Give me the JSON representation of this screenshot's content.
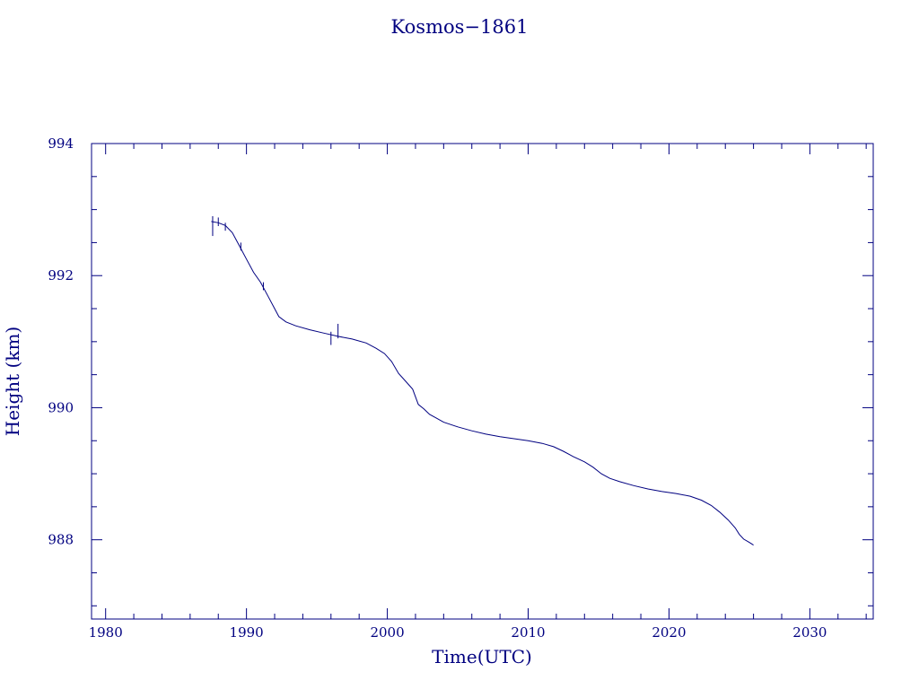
{
  "chart_data": {
    "type": "line",
    "title": "Kosmos−1861",
    "xlabel": "Time(UTC)",
    "ylabel": "Height (km)",
    "xlim": [
      1979,
      2034.5
    ],
    "ylim": [
      986.8,
      994
    ],
    "x_ticks": [
      1980,
      1990,
      2000,
      2010,
      2020,
      2030
    ],
    "y_ticks": [
      988,
      990,
      992,
      994
    ],
    "grid": false,
    "color": "#000080",
    "series": [
      {
        "x": [
          1987.5,
          1988.0,
          1988.5,
          1989.0,
          1989.5,
          1990.0,
          1990.5,
          1991.0,
          1991.5,
          1992.0,
          1992.3,
          1992.8,
          1993.5,
          1994.5,
          1995.5,
          1996.5,
          1997.5,
          1998.5,
          1999.2,
          1999.8,
          2000.3,
          2000.8,
          2001.3,
          2001.8,
          2002.2,
          2002.6,
          2003.0,
          2003.5,
          2004.0,
          2005.0,
          2006.0,
          2007.0,
          2008.0,
          2009.0,
          2010.0,
          2011.0,
          2011.8,
          2012.5,
          2013.2,
          2014.0,
          2014.6,
          2015.2,
          2015.8,
          2016.5,
          2017.5,
          2018.5,
          2019.5,
          2020.5,
          2021.5,
          2022.3,
          2023.0,
          2023.6,
          2024.2,
          2024.7,
          2025.0,
          2025.3,
          2025.7,
          2026.0
        ],
        "y": [
          992.82,
          992.8,
          992.76,
          992.65,
          992.45,
          992.25,
          992.05,
          991.9,
          991.7,
          991.5,
          991.38,
          991.3,
          991.24,
          991.18,
          991.13,
          991.08,
          991.04,
          990.98,
          990.9,
          990.82,
          990.7,
          990.52,
          990.4,
          990.28,
          990.05,
          989.98,
          989.9,
          989.84,
          989.78,
          989.71,
          989.65,
          989.6,
          989.56,
          989.53,
          989.5,
          989.46,
          989.41,
          989.34,
          989.26,
          989.18,
          989.1,
          989.0,
          988.93,
          988.88,
          988.82,
          988.77,
          988.73,
          988.7,
          988.66,
          988.6,
          988.52,
          988.42,
          988.3,
          988.18,
          988.08,
          988.01,
          987.96,
          987.92
        ]
      }
    ],
    "spikes": [
      {
        "x": 1987.6,
        "low": 992.6,
        "high": 992.9
      },
      {
        "x": 1988.0,
        "low": 992.75,
        "high": 992.88
      },
      {
        "x": 1988.5,
        "low": 992.68,
        "high": 992.8
      },
      {
        "x": 1989.6,
        "low": 992.38,
        "high": 992.5
      },
      {
        "x": 1991.2,
        "low": 991.78,
        "high": 991.9
      },
      {
        "x": 1996.0,
        "low": 990.95,
        "high": 991.15
      },
      {
        "x": 1996.5,
        "low": 991.05,
        "high": 991.27
      }
    ]
  }
}
